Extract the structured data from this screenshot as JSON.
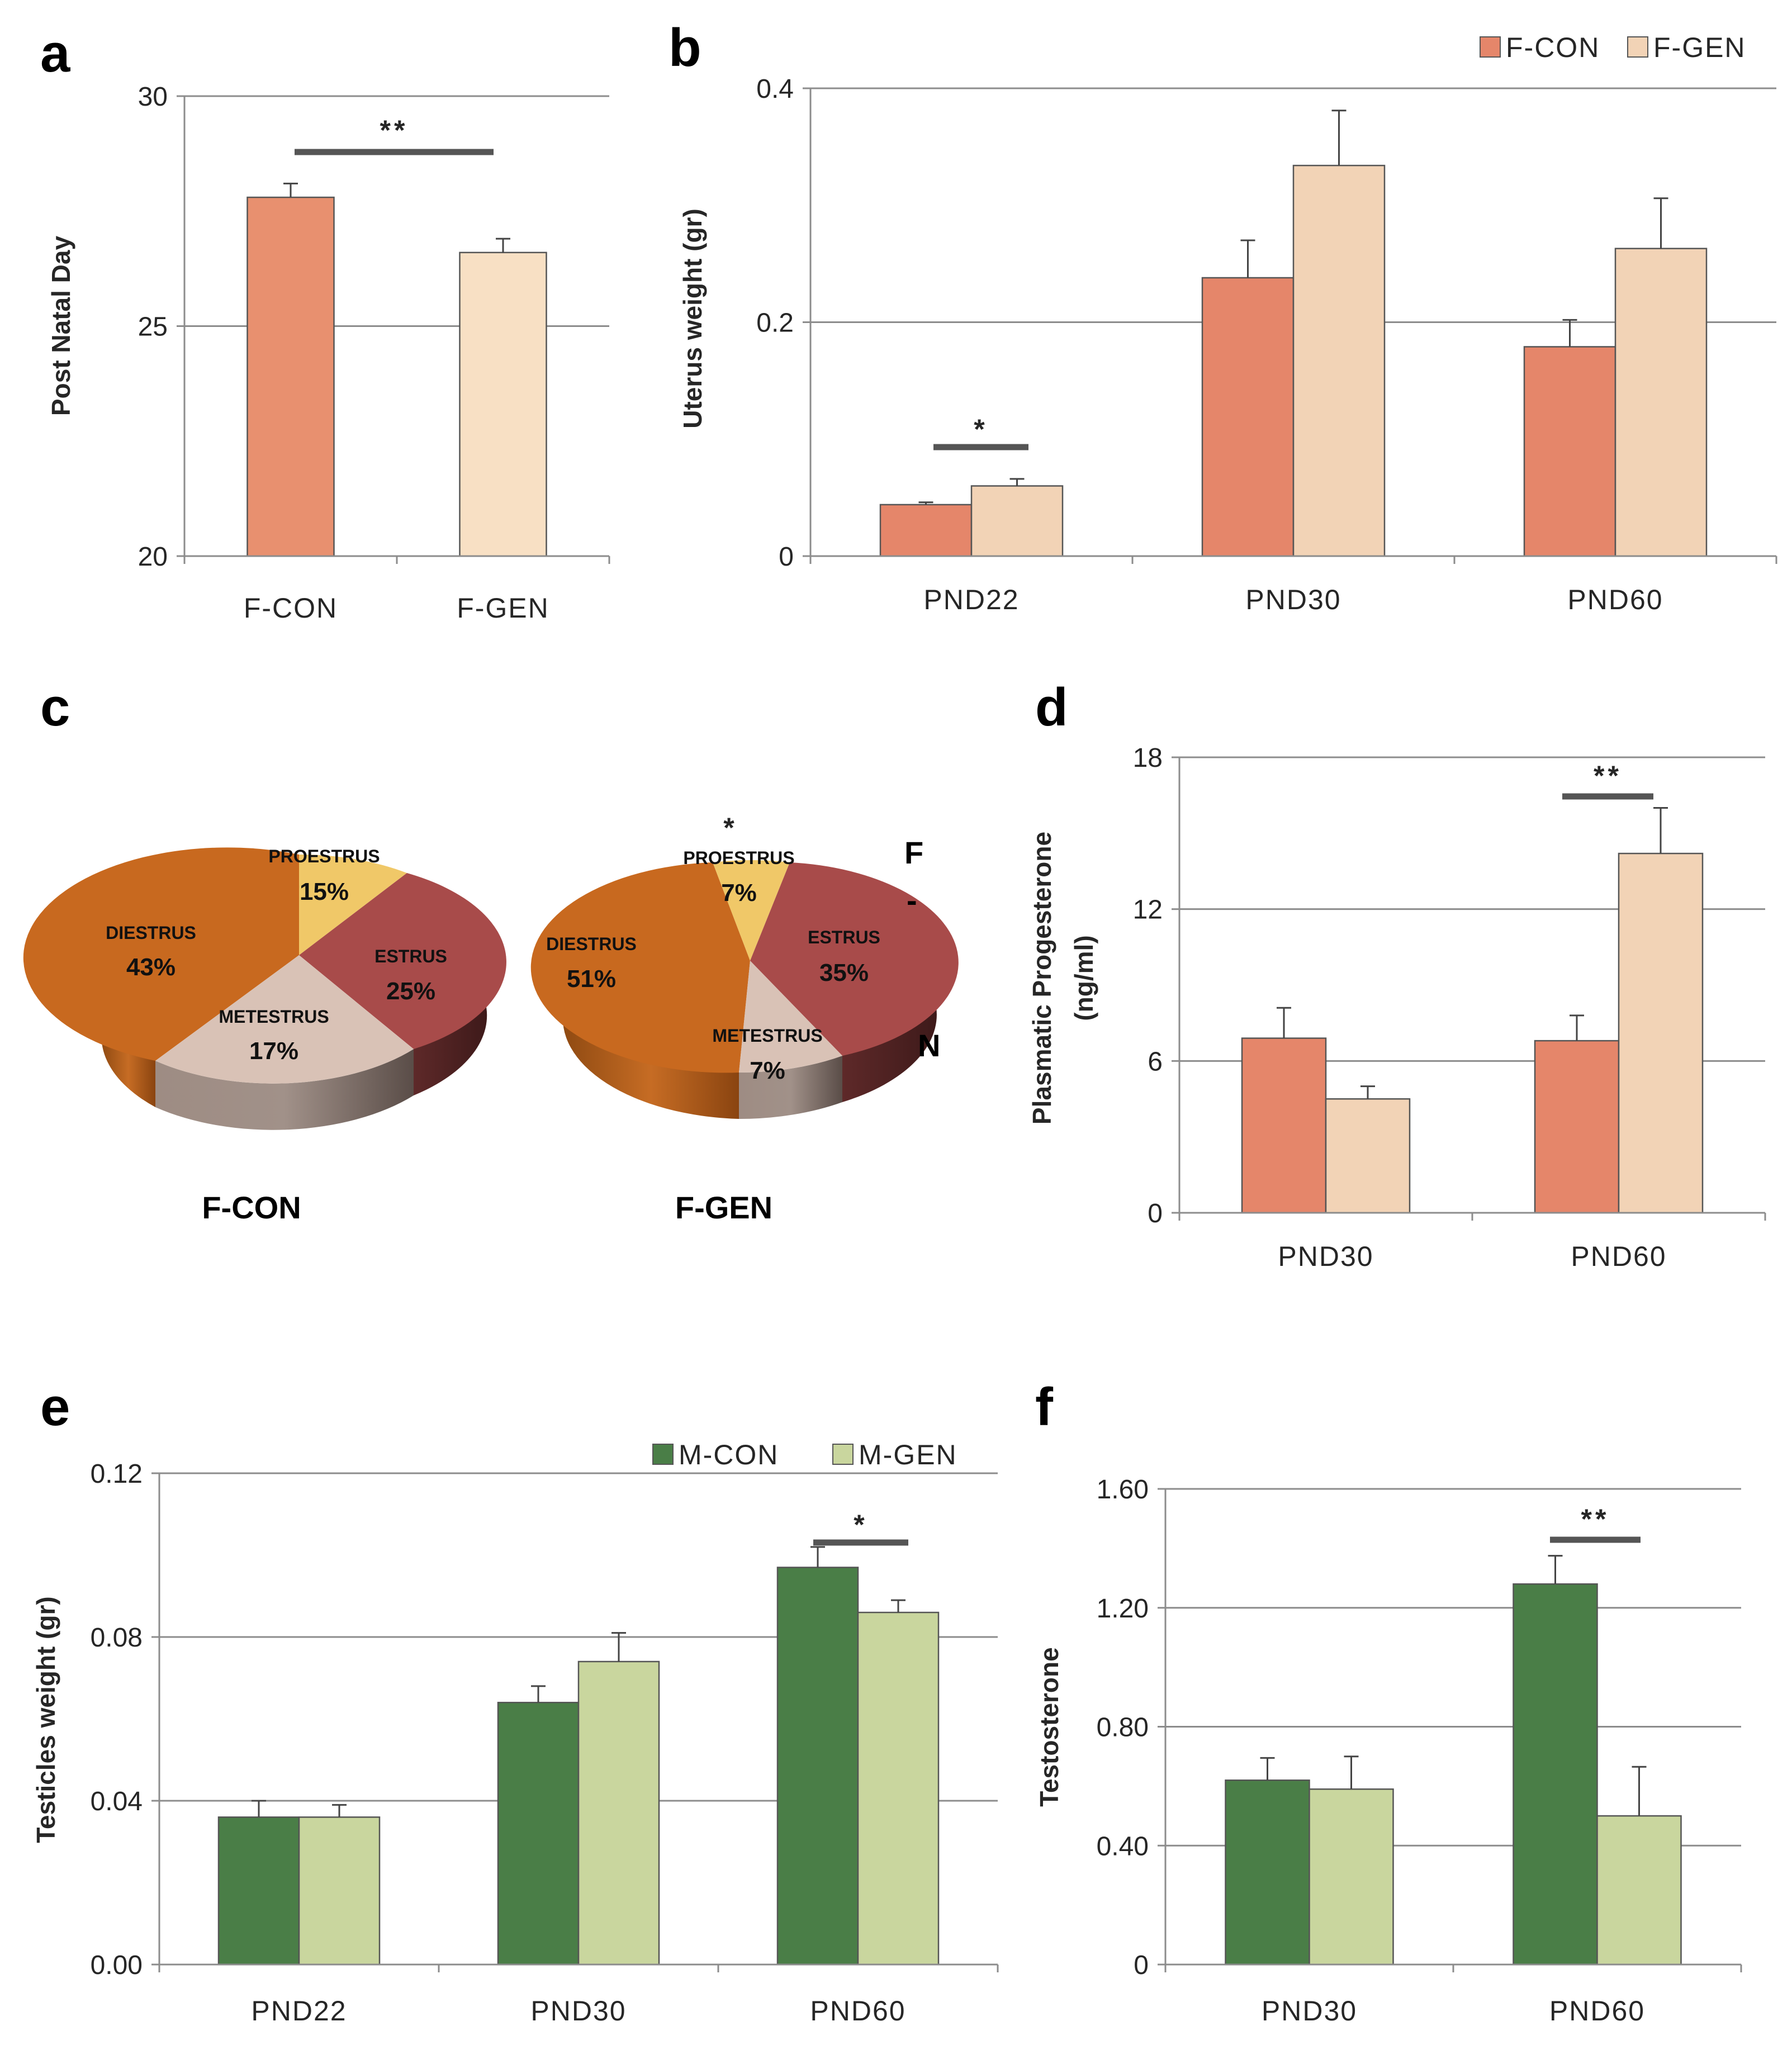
{
  "colors": {
    "fcon": "#e5866a",
    "fcon_a": "#e8906f",
    "fgen": "#f2d3b6",
    "fgen_a": "#f8e0c4",
    "mcon": "#4a7e47",
    "mgen": "#c9d69e",
    "grid": "#8c8c8c",
    "bar_stroke": "#555555",
    "sig_bar": "#555555",
    "diestrus": "#c8691f",
    "proestrus": "#f0c868",
    "estrus": "#a84b4a",
    "metestrus": "#d9c2b6"
  },
  "chart_data": [
    {
      "panel": "a",
      "type": "bar",
      "ylabel": "Post Natal Day",
      "ylim": [
        20,
        30
      ],
      "yticks": [
        "20",
        "25",
        "30"
      ],
      "categories": [
        "F-CON",
        "F-GEN"
      ],
      "values": [
        27.8,
        26.6
      ],
      "errors": [
        0.3,
        0.3
      ],
      "significance": [
        {
          "label": "**",
          "between": [
            "F-CON",
            "F-GEN"
          ]
        }
      ]
    },
    {
      "panel": "b",
      "type": "bar",
      "ylabel": "Uterus weight (gr)",
      "ylim": [
        0,
        0.4
      ],
      "yticks": [
        "0",
        "0.2",
        "0.4"
      ],
      "categories": [
        "PND22",
        "PND30",
        "PND60"
      ],
      "series": [
        {
          "name": "F-CON",
          "values": [
            0.044,
            0.238,
            0.179
          ],
          "errors": [
            0.002,
            0.032,
            0.023
          ]
        },
        {
          "name": "F-GEN",
          "values": [
            0.06,
            0.334,
            0.263
          ],
          "errors": [
            0.006,
            0.047,
            0.043
          ]
        }
      ],
      "significance": [
        {
          "label": "*",
          "category": "PND22"
        }
      ]
    },
    {
      "panel": "c",
      "type": "pie",
      "significance": "*",
      "legend_fragments": [
        "F",
        "-",
        "N"
      ],
      "pies": [
        {
          "title": "F-CON",
          "slices": [
            {
              "label": "DIESTRUS",
              "pct": "43%",
              "value": 43
            },
            {
              "label": "PROESTRUS",
              "pct": "15%",
              "value": 15
            },
            {
              "label": "ESTRUS",
              "pct": "25%",
              "value": 25
            },
            {
              "label": "METESTRUS",
              "pct": "17%",
              "value": 17
            }
          ]
        },
        {
          "title": "F-GEN",
          "slices": [
            {
              "label": "DIESTRUS",
              "pct": "51%",
              "value": 51
            },
            {
              "label": "PROESTRUS",
              "pct": "7%",
              "value": 7
            },
            {
              "label": "ESTRUS",
              "pct": "35%",
              "value": 35
            },
            {
              "label": "METESTRUS",
              "pct": "7%",
              "value": 7
            }
          ]
        }
      ]
    },
    {
      "panel": "d",
      "type": "bar",
      "ylabel": "Plasmatic Progesterone",
      "ylabel2": "(ng/ml)",
      "ylim": [
        0,
        18
      ],
      "yticks": [
        "0",
        "6",
        "12",
        "18"
      ],
      "categories": [
        "PND30",
        "PND60"
      ],
      "series": [
        {
          "name": "F-CON",
          "values": [
            6.9,
            6.8
          ],
          "errors": [
            1.2,
            1.0
          ]
        },
        {
          "name": "F-GEN",
          "values": [
            4.5,
            14.2
          ],
          "errors": [
            0.5,
            1.8
          ]
        }
      ],
      "significance": [
        {
          "label": "**",
          "category": "PND60"
        }
      ]
    },
    {
      "panel": "e",
      "type": "bar",
      "ylabel": "Testicles weight (gr)",
      "ylim": [
        0,
        0.12
      ],
      "yticks": [
        "0.00",
        "0.04",
        "0.08",
        "0.12"
      ],
      "categories": [
        "PND22",
        "PND30",
        "PND60"
      ],
      "series": [
        {
          "name": "M-CON",
          "values": [
            0.036,
            0.064,
            0.097
          ],
          "errors": [
            0.004,
            0.004,
            0.005
          ]
        },
        {
          "name": "M-GEN",
          "values": [
            0.036,
            0.074,
            0.086
          ],
          "errors": [
            0.003,
            0.007,
            0.003
          ]
        }
      ],
      "significance": [
        {
          "label": "*",
          "category": "PND60"
        }
      ]
    },
    {
      "panel": "f",
      "type": "bar",
      "ylabel": "Testosterone",
      "ylim": [
        0,
        1.6
      ],
      "yticks": [
        "0",
        "0.40",
        "0.80",
        "1.20",
        "1.60"
      ],
      "categories": [
        "PND30",
        "PND60"
      ],
      "series": [
        {
          "name": "M-CON",
          "values": [
            0.62,
            1.28
          ],
          "errors": [
            0.075,
            0.095
          ]
        },
        {
          "name": "M-GEN",
          "values": [
            0.59,
            0.5
          ],
          "errors": [
            0.11,
            0.165
          ]
        }
      ],
      "significance": [
        {
          "label": "**",
          "category": "PND60"
        }
      ]
    }
  ]
}
